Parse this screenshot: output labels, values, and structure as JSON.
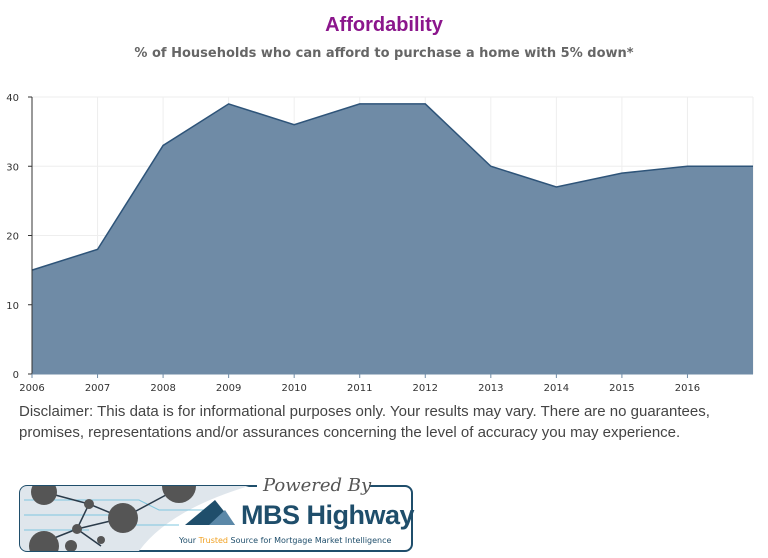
{
  "chart_data": {
    "type": "area",
    "title": "Affordability",
    "subtitle": "% of Households who can afford to purchase a home with 5% down*",
    "x": [
      2006,
      2007,
      2008,
      2009,
      2010,
      2011,
      2012,
      2013,
      2014,
      2015,
      2016,
      2017
    ],
    "values": [
      15,
      18,
      33,
      39,
      36,
      39,
      39,
      30,
      27,
      29,
      30,
      30
    ],
    "x_tick_labels": [
      "2006",
      "2007",
      "2008",
      "2009",
      "2010",
      "2011",
      "2012",
      "2013",
      "2014",
      "2015",
      "2016"
    ],
    "y_tick_labels": [
      "0",
      "10",
      "20",
      "30",
      "40"
    ],
    "ylim": [
      0,
      40
    ],
    "xlim": [
      2006,
      2017
    ],
    "grid": true,
    "xlabel": "",
    "ylabel": "",
    "fill_color": "#6f8ba6",
    "line_color": "#2e5479"
  },
  "disclaimer": "Disclaimer: This data is for informational purposes only. Your results may vary. There are no guarantees, promises, representations and/or assurances concerning the level of accuracy you may experience.",
  "logo": {
    "powered_by": "Powered By",
    "brand": "MBS Highway",
    "tagline_pre": "Your ",
    "tagline_hl": "Trusted",
    "tagline_post": " Source for Mortgage Market Intelligence"
  }
}
